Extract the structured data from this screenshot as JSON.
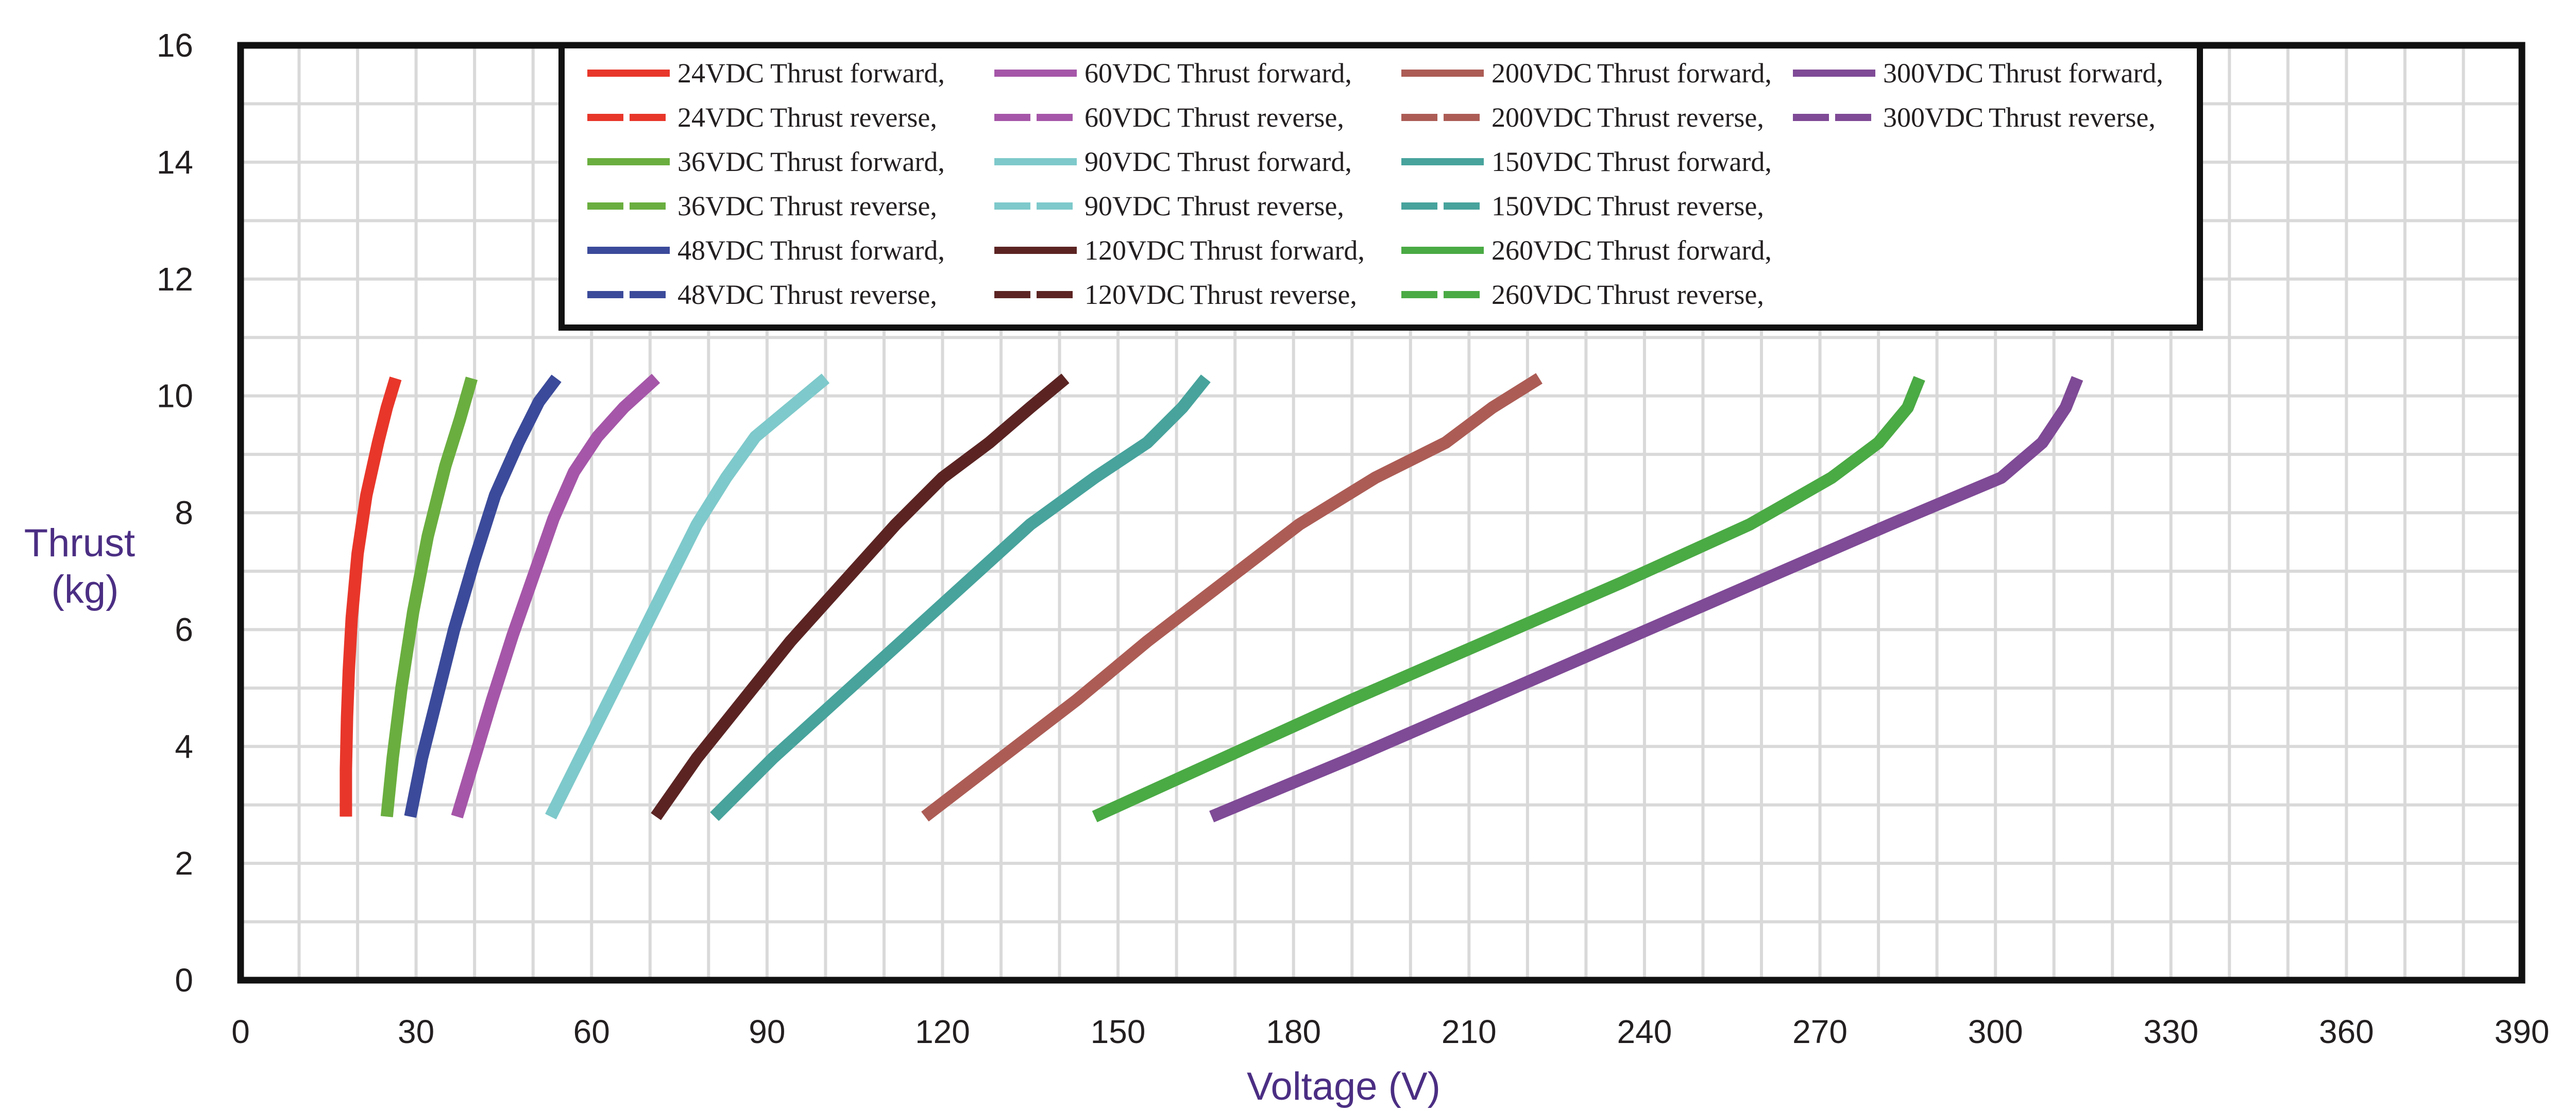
{
  "chart_data": {
    "type": "line",
    "title": "",
    "xlabel": "Voltage (V)",
    "ylabel_lines": [
      "Thrust",
      "(kg)"
    ],
    "xlim": [
      0,
      390
    ],
    "ylim": [
      0,
      16
    ],
    "x_ticks": [
      "0",
      "30",
      "60",
      "90",
      "120",
      "150",
      "180",
      "210",
      "240",
      "270",
      "300",
      "330",
      "360",
      "390"
    ],
    "y_ticks": [
      "0",
      "2",
      "4",
      "6",
      "8",
      "10",
      "12",
      "14",
      "16"
    ],
    "grid": true,
    "legend_location": "top-center",
    "series": [
      {
        "name": "24VDC Thrust forward,",
        "voltage": "24VDC",
        "label": "Thrust forward,",
        "style": "solid",
        "color": "#e8362a",
        "points": [
          [
            18,
            2.8
          ],
          [
            18,
            3.6
          ],
          [
            18.2,
            4.5
          ],
          [
            18.5,
            5.3
          ],
          [
            19,
            6.2
          ],
          [
            20,
            7.3
          ],
          [
            21.5,
            8.3
          ],
          [
            23.5,
            9.2
          ],
          [
            25,
            9.8
          ],
          [
            26.5,
            10.3
          ]
        ]
      },
      {
        "name": "24VDC Thrust reverse,",
        "voltage": "24VDC",
        "label": "Thrust reverse,",
        "style": "dashed",
        "color": "#e8362a",
        "points": [
          [
            18,
            2.8
          ],
          [
            18,
            3.6
          ],
          [
            18.2,
            4.5
          ],
          [
            18.5,
            5.3
          ],
          [
            19,
            6.2
          ],
          [
            20,
            7.3
          ],
          [
            21.5,
            8.3
          ],
          [
            23.5,
            9.2
          ],
          [
            25,
            9.8
          ],
          [
            26.5,
            10.3
          ]
        ]
      },
      {
        "name": "36VDC Thrust forward,",
        "voltage": "36VDC",
        "label": "Thrust forward,",
        "style": "solid",
        "color": "#6aae3f",
        "points": [
          [
            25,
            2.8
          ],
          [
            26,
            3.8
          ],
          [
            27.5,
            5.0
          ],
          [
            29.5,
            6.3
          ],
          [
            32,
            7.6
          ],
          [
            35,
            8.8
          ],
          [
            37.5,
            9.6
          ],
          [
            39.5,
            10.3
          ]
        ]
      },
      {
        "name": "36VDC Thrust reverse,",
        "voltage": "36VDC",
        "label": "Thrust reverse,",
        "style": "dashed",
        "color": "#6aae3f",
        "points": [
          [
            25,
            2.8
          ],
          [
            26,
            3.8
          ],
          [
            27.5,
            5.0
          ],
          [
            29.5,
            6.3
          ],
          [
            32,
            7.6
          ],
          [
            35,
            8.8
          ],
          [
            37.5,
            9.6
          ],
          [
            39.5,
            10.3
          ]
        ]
      },
      {
        "name": "48VDC Thrust forward,",
        "voltage": "48VDC",
        "label": "Thrust forward,",
        "style": "solid",
        "color": "#3b4a9a",
        "points": [
          [
            29,
            2.8
          ],
          [
            31,
            3.8
          ],
          [
            33.5,
            4.8
          ],
          [
            36.5,
            6.0
          ],
          [
            40,
            7.2
          ],
          [
            43.5,
            8.3
          ],
          [
            47.5,
            9.2
          ],
          [
            51,
            9.9
          ],
          [
            54,
            10.3
          ]
        ]
      },
      {
        "name": "48VDC Thrust reverse,",
        "voltage": "48VDC",
        "label": "Thrust reverse,",
        "style": "dashed",
        "color": "#3b4a9a",
        "points": [
          [
            29,
            2.8
          ],
          [
            31,
            3.8
          ],
          [
            33.5,
            4.8
          ],
          [
            36.5,
            6.0
          ],
          [
            40,
            7.2
          ],
          [
            43.5,
            8.3
          ],
          [
            47.5,
            9.2
          ],
          [
            51,
            9.9
          ],
          [
            54,
            10.3
          ]
        ]
      },
      {
        "name": "60VDC Thrust forward,",
        "voltage": "60VDC",
        "label": "Thrust forward,",
        "style": "solid",
        "color": "#a556a8",
        "points": [
          [
            37,
            2.8
          ],
          [
            40,
            3.8
          ],
          [
            43,
            4.8
          ],
          [
            46.5,
            5.9
          ],
          [
            50,
            6.9
          ],
          [
            53.5,
            7.9
          ],
          [
            57,
            8.7
          ],
          [
            61,
            9.3
          ],
          [
            65.5,
            9.8
          ],
          [
            71,
            10.3
          ]
        ]
      },
      {
        "name": "60VDC Thrust reverse,",
        "voltage": "60VDC",
        "label": "Thrust reverse,",
        "style": "dashed",
        "color": "#a556a8",
        "points": [
          [
            37,
            2.8
          ],
          [
            40,
            3.8
          ],
          [
            43,
            4.8
          ],
          [
            46.5,
            5.9
          ],
          [
            50,
            6.9
          ],
          [
            53.5,
            7.9
          ],
          [
            57,
            8.7
          ],
          [
            61,
            9.3
          ],
          [
            65.5,
            9.8
          ],
          [
            71,
            10.3
          ]
        ]
      },
      {
        "name": "90VDC Thrust forward,",
        "voltage": "90VDC",
        "label": "Thrust forward,",
        "style": "solid",
        "color": "#7ec9cb",
        "points": [
          [
            53,
            2.8
          ],
          [
            58,
            3.8
          ],
          [
            63,
            4.8
          ],
          [
            68,
            5.8
          ],
          [
            73,
            6.8
          ],
          [
            78,
            7.8
          ],
          [
            83,
            8.6
          ],
          [
            88,
            9.3
          ],
          [
            94,
            9.8
          ],
          [
            100,
            10.3
          ]
        ]
      },
      {
        "name": "90VDC Thrust reverse,",
        "voltage": "90VDC",
        "label": "Thrust reverse,",
        "style": "dashed",
        "color": "#7ec9cb",
        "points": [
          [
            53,
            2.8
          ],
          [
            58,
            3.8
          ],
          [
            63,
            4.8
          ],
          [
            68,
            5.8
          ],
          [
            73,
            6.8
          ],
          [
            78,
            7.8
          ],
          [
            83,
            8.6
          ],
          [
            88,
            9.3
          ],
          [
            94,
            9.8
          ],
          [
            100,
            10.3
          ]
        ]
      },
      {
        "name": "120VDC Thrust forward,",
        "voltage": "120VDC",
        "label": "Thrust forward,",
        "style": "solid",
        "color": "#5b2423",
        "points": [
          [
            71,
            2.8
          ],
          [
            78,
            3.8
          ],
          [
            86,
            4.8
          ],
          [
            94,
            5.8
          ],
          [
            103,
            6.8
          ],
          [
            112,
            7.8
          ],
          [
            120,
            8.6
          ],
          [
            128,
            9.2
          ],
          [
            135,
            9.8
          ],
          [
            141,
            10.3
          ]
        ]
      },
      {
        "name": "120VDC Thrust reverse,",
        "voltage": "120VDC",
        "label": "Thrust reverse,",
        "style": "dashed",
        "color": "#5b2423",
        "points": [
          [
            71,
            2.8
          ],
          [
            78,
            3.8
          ],
          [
            86,
            4.8
          ],
          [
            94,
            5.8
          ],
          [
            103,
            6.8
          ],
          [
            112,
            7.8
          ],
          [
            120,
            8.6
          ],
          [
            128,
            9.2
          ],
          [
            135,
            9.8
          ],
          [
            141,
            10.3
          ]
        ]
      },
      {
        "name": "150VDC Thrust forward,",
        "voltage": "150VDC",
        "label": "Thrust forward,",
        "style": "solid",
        "color": "#47a39c",
        "points": [
          [
            81,
            2.8
          ],
          [
            91,
            3.8
          ],
          [
            102,
            4.8
          ],
          [
            113,
            5.8
          ],
          [
            124,
            6.8
          ],
          [
            135,
            7.8
          ],
          [
            146,
            8.6
          ],
          [
            155,
            9.2
          ],
          [
            161,
            9.8
          ],
          [
            165,
            10.3
          ]
        ]
      },
      {
        "name": "150VDC Thrust reverse,",
        "voltage": "150VDC",
        "label": "Thrust reverse,",
        "style": "dashed",
        "color": "#47a39c",
        "points": [
          [
            81,
            2.8
          ],
          [
            91,
            3.8
          ],
          [
            102,
            4.8
          ],
          [
            113,
            5.8
          ],
          [
            124,
            6.8
          ],
          [
            135,
            7.8
          ],
          [
            146,
            8.6
          ],
          [
            155,
            9.2
          ],
          [
            161,
            9.8
          ],
          [
            165,
            10.3
          ]
        ]
      },
      {
        "name": "200VDC Thrust forward,",
        "voltage": "200VDC",
        "label": "Thrust forward,",
        "style": "solid",
        "color": "#ac5c55",
        "points": [
          [
            117,
            2.8
          ],
          [
            130,
            3.8
          ],
          [
            143,
            4.8
          ],
          [
            155,
            5.8
          ],
          [
            168,
            6.8
          ],
          [
            181,
            7.8
          ],
          [
            194,
            8.6
          ],
          [
            206,
            9.2
          ],
          [
            214,
            9.8
          ],
          [
            222,
            10.3
          ]
        ]
      },
      {
        "name": "200VDC Thrust reverse,",
        "voltage": "200VDC",
        "label": "Thrust reverse,",
        "style": "dashed",
        "color": "#ac5c55",
        "points": [
          [
            117,
            2.8
          ],
          [
            130,
            3.8
          ],
          [
            143,
            4.8
          ],
          [
            155,
            5.8
          ],
          [
            168,
            6.8
          ],
          [
            181,
            7.8
          ],
          [
            194,
            8.6
          ],
          [
            206,
            9.2
          ],
          [
            214,
            9.8
          ],
          [
            222,
            10.3
          ]
        ]
      },
      {
        "name": "260VDC Thrust forward,",
        "voltage": "260VDC",
        "label": "Thrust forward,",
        "style": "solid",
        "color": "#4aaa44",
        "points": [
          [
            146,
            2.8
          ],
          [
            168,
            3.8
          ],
          [
            190,
            4.8
          ],
          [
            213,
            5.8
          ],
          [
            236,
            6.8
          ],
          [
            258,
            7.8
          ],
          [
            272,
            8.6
          ],
          [
            280,
            9.2
          ],
          [
            285,
            9.8
          ],
          [
            287,
            10.3
          ]
        ]
      },
      {
        "name": "260VDC Thrust reverse,",
        "voltage": "260VDC",
        "label": "Thrust reverse,",
        "style": "dashed",
        "color": "#4aaa44",
        "points": [
          [
            146,
            2.8
          ],
          [
            168,
            3.8
          ],
          [
            190,
            4.8
          ],
          [
            213,
            5.8
          ],
          [
            236,
            6.8
          ],
          [
            258,
            7.8
          ],
          [
            272,
            8.6
          ],
          [
            280,
            9.2
          ],
          [
            285,
            9.8
          ],
          [
            287,
            10.3
          ]
        ]
      },
      {
        "name": "300VDC Thrust forward,",
        "voltage": "300VDC",
        "label": "Thrust forward,",
        "style": "solid",
        "color": "#7f4a96",
        "points": [
          [
            166,
            2.8
          ],
          [
            190,
            3.8
          ],
          [
            213,
            4.8
          ],
          [
            236,
            5.8
          ],
          [
            259,
            6.8
          ],
          [
            282,
            7.8
          ],
          [
            301,
            8.6
          ],
          [
            308,
            9.2
          ],
          [
            312,
            9.8
          ],
          [
            314,
            10.3
          ]
        ]
      },
      {
        "name": "300VDC Thrust reverse,",
        "voltage": "300VDC",
        "label": "Thrust reverse,",
        "style": "dashed",
        "color": "#7f4a96",
        "points": [
          [
            166,
            2.8
          ],
          [
            190,
            3.8
          ],
          [
            213,
            4.8
          ],
          [
            236,
            5.8
          ],
          [
            259,
            6.8
          ],
          [
            282,
            7.8
          ],
          [
            301,
            8.6
          ],
          [
            308,
            9.2
          ],
          [
            312,
            9.8
          ],
          [
            314,
            10.3
          ]
        ]
      }
    ],
    "legend_order": [
      [
        "24VDC Thrust forward,",
        "24VDC Thrust reverse,",
        "36VDC Thrust forward,",
        "36VDC Thrust reverse,",
        "48VDC Thrust forward,",
        "48VDC Thrust reverse,"
      ],
      [
        "60VDC Thrust forward,",
        "60VDC Thrust reverse,",
        "90VDC Thrust forward,",
        "90VDC Thrust reverse,",
        "120VDC Thrust forward,",
        "120VDC Thrust reverse,"
      ],
      [
        "200VDC Thrust forward,",
        "200VDC Thrust reverse,",
        "150VDC Thrust forward,",
        "150VDC Thrust reverse,",
        "260VDC Thrust forward,",
        "260VDC Thrust reverse,"
      ],
      [
        "300VDC Thrust forward,",
        "300VDC Thrust reverse,"
      ]
    ]
  }
}
